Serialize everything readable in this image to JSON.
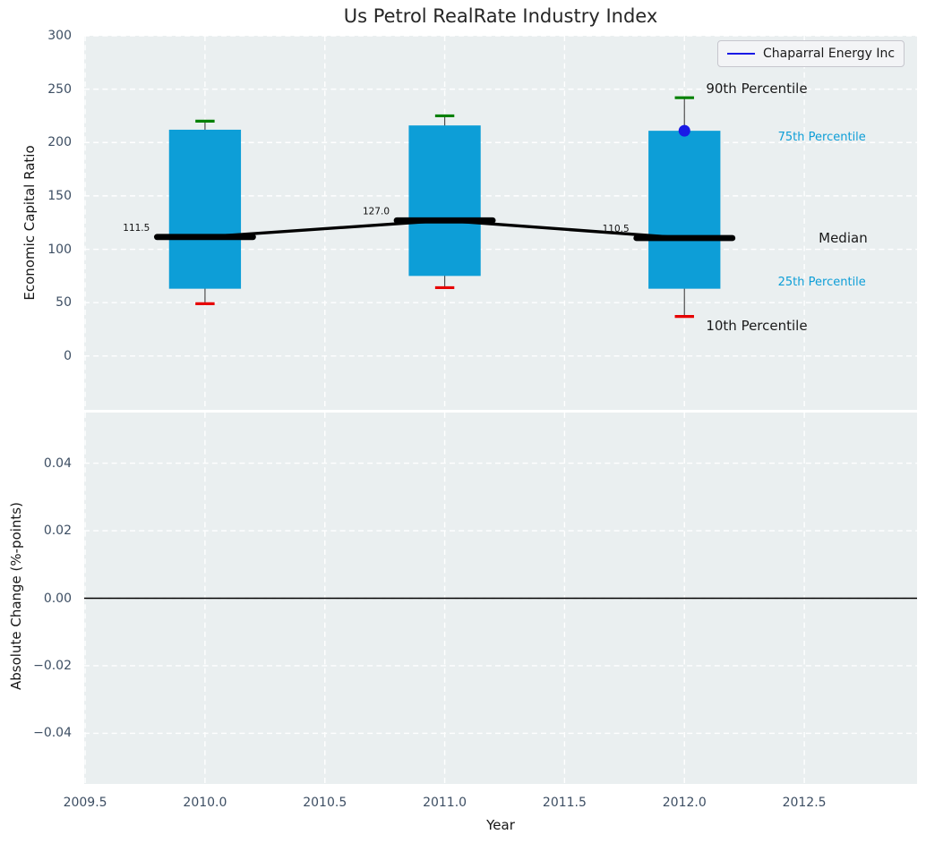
{
  "figure": {
    "title": "Us Petrol RealRate Industry Index",
    "background": "#ffffff",
    "axes_background": "#eaeff0",
    "grid_color": "#ffffff",
    "tick_color": "#3d4e63",
    "text_color": "#161616"
  },
  "legend": {
    "label": "Chaparral Energy Inc",
    "line_color": "#1a1ae6"
  },
  "chart_data": [
    {
      "type": "box-timeseries",
      "title": "Us Petrol RealRate Industry Index",
      "ylabel": "Economic Capital Ratio",
      "xlabel": "",
      "xlim": [
        2009.496,
        2012.9704
      ],
      "ylim": [
        -50.5,
        300
      ],
      "grid": true,
      "legend_position": "upper right",
      "xticks": [
        {
          "v": 2009.5,
          "label": "2009.5"
        },
        {
          "v": 2010.0,
          "label": "2010.0"
        },
        {
          "v": 2010.5,
          "label": "2010.5"
        },
        {
          "v": 2011.0,
          "label": "2011.0"
        },
        {
          "v": 2011.5,
          "label": "2011.5"
        },
        {
          "v": 2012.0,
          "label": "2012.0"
        },
        {
          "v": 2012.5,
          "label": "2012.5"
        }
      ],
      "show_xtick_labels": false,
      "yticks": [
        {
          "v": 0,
          "label": "0"
        },
        {
          "v": 50,
          "label": "50"
        },
        {
          "v": 100,
          "label": "100"
        },
        {
          "v": 150,
          "label": "150"
        },
        {
          "v": 200,
          "label": "200"
        },
        {
          "v": 250,
          "label": "250"
        },
        {
          "v": 300,
          "label": "300"
        }
      ],
      "groups": [
        {
          "year": 2010,
          "p10": 49,
          "p25": 63,
          "median": 111.5,
          "p75": 212,
          "p90": 220,
          "median_label": "111.5"
        },
        {
          "year": 2011,
          "p10": 64,
          "p25": 75,
          "median": 127.0,
          "p75": 216,
          "p90": 225,
          "median_label": "127.0"
        },
        {
          "year": 2012,
          "p10": 37,
          "p25": 63,
          "median": 110.5,
          "p75": 211,
          "p90": 242,
          "median_label": "110.5"
        }
      ],
      "company_series": {
        "name": "Chaparral Energy Inc",
        "color": "#1a1ae6",
        "points": [
          {
            "x": 2012,
            "y": 211
          }
        ]
      },
      "annotations": [
        {
          "text": "90th Percentile",
          "x": 2012.09,
          "y": 250,
          "color": "#1a1a1a",
          "size": 15
        },
        {
          "text": "75th Percentile",
          "x": 2012.39,
          "y": 205,
          "color": "#0d9ed7",
          "size": 13
        },
        {
          "text": "Median",
          "x": 2012.56,
          "y": 110,
          "color": "#1a1a1a",
          "size": 15
        },
        {
          "text": "25th Percentile",
          "x": 2012.39,
          "y": 69,
          "color": "#0d9ed7",
          "size": 13
        },
        {
          "text": "10th Percentile",
          "x": 2012.09,
          "y": 28,
          "color": "#1a1a1a",
          "size": 15
        }
      ],
      "styles": {
        "bar_color": "#0d9ed7",
        "p90_cap_color": "#008000",
        "p10_cap_color": "#e60000",
        "median_color": "#000000",
        "whisker_color": "#4d4d4d",
        "box_halfwidth": 0.15,
        "median_halfwidth": 0.2,
        "cap_halfwidth": 0.04
      }
    },
    {
      "type": "line",
      "ylabel": "Absolute Change (%-points)",
      "xlabel": "Year",
      "xlim": [
        2009.496,
        2012.9704
      ],
      "ylim": [
        -0.055,
        0.055
      ],
      "grid": true,
      "xticks": [
        {
          "v": 2009.5,
          "label": "2009.5"
        },
        {
          "v": 2010.0,
          "label": "2010.0"
        },
        {
          "v": 2010.5,
          "label": "2010.5"
        },
        {
          "v": 2011.0,
          "label": "2011.0"
        },
        {
          "v": 2011.5,
          "label": "2011.5"
        },
        {
          "v": 2012.0,
          "label": "2012.0"
        },
        {
          "v": 2012.5,
          "label": "2012.5"
        }
      ],
      "show_xtick_labels": true,
      "yticks": [
        {
          "v": 0.04,
          "label": "0.04"
        },
        {
          "v": 0.02,
          "label": "0.02"
        },
        {
          "v": 0.0,
          "label": "0.00"
        },
        {
          "v": -0.02,
          "label": "−0.02"
        },
        {
          "v": -0.04,
          "label": "−0.04"
        }
      ],
      "zero_line": 0.0,
      "series": []
    }
  ]
}
